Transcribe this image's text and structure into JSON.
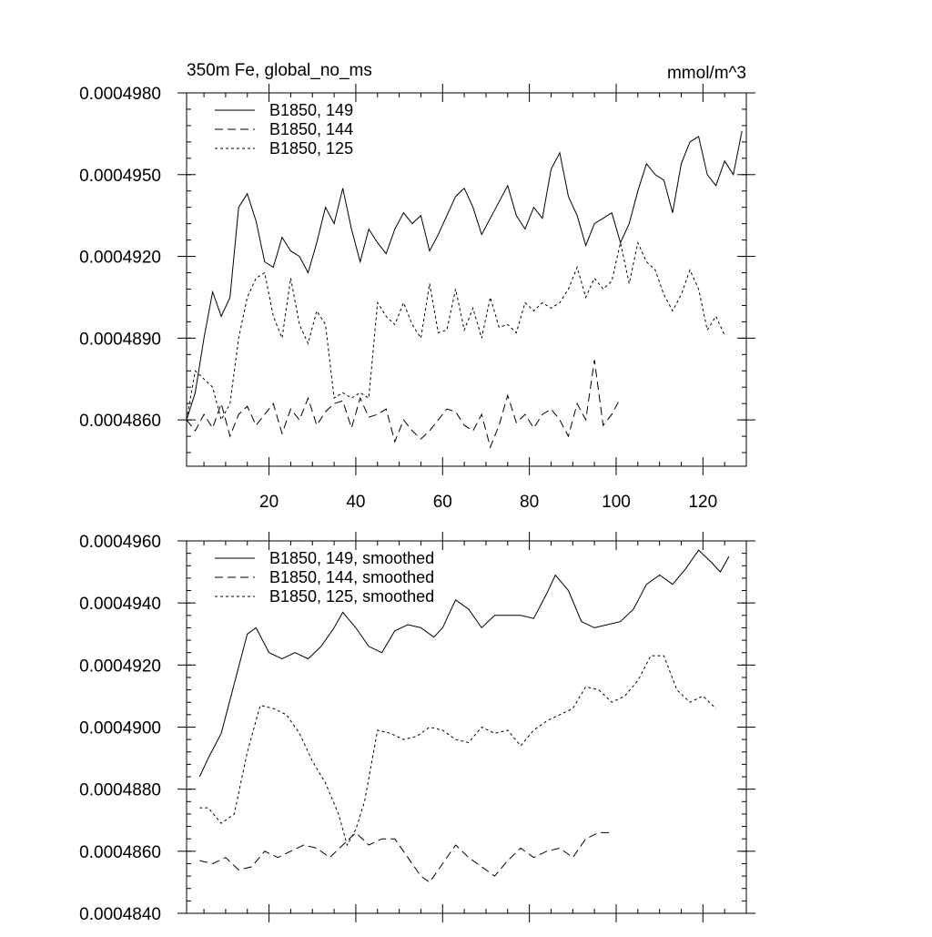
{
  "chart_data": [
    {
      "type": "line",
      "title": "350m Fe, global_no_ms",
      "units": "mmol/m^3",
      "xlim": [
        1,
        130
      ],
      "ylim": [
        0.0004843,
        0.000498
      ],
      "yticks": [
        0.000486,
        0.000489,
        0.000492,
        0.000495,
        0.000498
      ],
      "ytick_labels": [
        "0.0004860",
        "0.0004890",
        "0.0004920",
        "0.0004950",
        "0.0004980"
      ],
      "xticks": [
        20,
        40,
        60,
        80,
        100,
        120
      ],
      "xtick_labels": [
        "20",
        "40",
        "60",
        "80",
        "100",
        "120"
      ],
      "legend_position": "top-left",
      "series": [
        {
          "name": "B1850, 149",
          "dash": "solid",
          "x": [
            1,
            3,
            5,
            7,
            9,
            11,
            13,
            15,
            17,
            19,
            21,
            23,
            25,
            27,
            29,
            31,
            33,
            35,
            37,
            39,
            41,
            43,
            45,
            47,
            49,
            51,
            53,
            55,
            57,
            59,
            61,
            63,
            65,
            67,
            69,
            71,
            73,
            75,
            77,
            79,
            81,
            83,
            85,
            87,
            89,
            91,
            93,
            95,
            97,
            99,
            101,
            103,
            105,
            107,
            109,
            111,
            113,
            115,
            117,
            119,
            121,
            123,
            125,
            127,
            129
          ],
          "values": [
            0.000486,
            0.000487,
            0.000489,
            0.0004907,
            0.0004898,
            0.0004905,
            0.0004938,
            0.0004943,
            0.0004933,
            0.0004918,
            0.0004916,
            0.0004927,
            0.0004922,
            0.000492,
            0.0004914,
            0.0004925,
            0.0004938,
            0.0004932,
            0.0004945,
            0.000493,
            0.0004918,
            0.000493,
            0.0004925,
            0.0004921,
            0.000493,
            0.0004936,
            0.0004932,
            0.0004935,
            0.0004922,
            0.0004928,
            0.0004935,
            0.0004942,
            0.0004945,
            0.0004938,
            0.0004928,
            0.0004934,
            0.000494,
            0.0004946,
            0.0004935,
            0.000493,
            0.0004938,
            0.0004934,
            0.0004952,
            0.0004958,
            0.0004942,
            0.0004935,
            0.0004924,
            0.0004932,
            0.0004934,
            0.0004936,
            0.0004925,
            0.0004932,
            0.0004944,
            0.0004954,
            0.000495,
            0.0004948,
            0.0004936,
            0.0004954,
            0.0004962,
            0.0004964,
            0.000495,
            0.0004946,
            0.0004955,
            0.000495,
            0.0004966
          ]
        },
        {
          "name": "B1850, 144",
          "dash": "long",
          "x": [
            1,
            3,
            5,
            7,
            9,
            11,
            13,
            15,
            17,
            19,
            21,
            23,
            25,
            27,
            29,
            31,
            33,
            35,
            37,
            39,
            41,
            43,
            45,
            47,
            49,
            51,
            53,
            55,
            57,
            59,
            61,
            63,
            65,
            67,
            69,
            71,
            73,
            75,
            77,
            79,
            81,
            83,
            85,
            87,
            89,
            91,
            93,
            95,
            97,
            99,
            101
          ],
          "values": [
            0.000486,
            0.0004856,
            0.0004862,
            0.0004857,
            0.0004866,
            0.0004854,
            0.0004862,
            0.0004865,
            0.0004858,
            0.0004862,
            0.0004866,
            0.0004855,
            0.0004864,
            0.000486,
            0.0004868,
            0.0004858,
            0.0004863,
            0.0004866,
            0.0004867,
            0.0004857,
            0.0004868,
            0.0004861,
            0.0004862,
            0.0004864,
            0.0004852,
            0.000486,
            0.0004856,
            0.0004853,
            0.0004856,
            0.000486,
            0.0004864,
            0.0004863,
            0.0004858,
            0.0004856,
            0.0004862,
            0.000485,
            0.0004858,
            0.0004869,
            0.0004859,
            0.0004862,
            0.0004857,
            0.0004862,
            0.0004864,
            0.000486,
            0.0004854,
            0.0004866,
            0.000486,
            0.0004882,
            0.0004858,
            0.0004862,
            0.0004868
          ]
        },
        {
          "name": "B1850, 125",
          "dash": "short",
          "x": [
            1,
            3,
            5,
            7,
            9,
            11,
            13,
            15,
            17,
            19,
            21,
            23,
            25,
            27,
            29,
            31,
            33,
            35,
            37,
            39,
            41,
            43,
            45,
            47,
            49,
            51,
            53,
            55,
            57,
            59,
            61,
            63,
            65,
            67,
            69,
            71,
            73,
            75,
            77,
            79,
            81,
            83,
            85,
            87,
            89,
            91,
            93,
            95,
            97,
            99,
            101,
            103,
            105,
            107,
            109,
            111,
            113,
            115,
            117,
            119,
            121,
            123,
            125
          ],
          "values": [
            0.000486,
            0.0004878,
            0.0004875,
            0.0004872,
            0.000486,
            0.0004866,
            0.000489,
            0.0004905,
            0.0004912,
            0.0004914,
            0.0004898,
            0.000489,
            0.0004912,
            0.0004895,
            0.0004888,
            0.00049,
            0.0004895,
            0.0004868,
            0.000487,
            0.0004868,
            0.000487,
            0.0004868,
            0.0004903,
            0.0004898,
            0.0004895,
            0.0004903,
            0.0004895,
            0.000489,
            0.000491,
            0.0004892,
            0.0004893,
            0.0004908,
            0.0004893,
            0.0004901,
            0.000489,
            0.0004905,
            0.0004894,
            0.0004895,
            0.0004892,
            0.0004903,
            0.00049,
            0.0004903,
            0.0004901,
            0.0004903,
            0.0004908,
            0.0004916,
            0.0004905,
            0.0004912,
            0.0004908,
            0.0004911,
            0.0004925,
            0.000491,
            0.0004925,
            0.0004918,
            0.0004915,
            0.0004906,
            0.00049,
            0.0004906,
            0.0004915,
            0.0004908,
            0.0004893,
            0.0004898,
            0.0004891
          ]
        }
      ]
    },
    {
      "type": "line",
      "title": "",
      "units": "",
      "xlim": [
        1,
        130
      ],
      "ylim": [
        0.000484,
        0.000496
      ],
      "yticks": [
        0.000484,
        0.000486,
        0.000488,
        0.00049,
        0.000492,
        0.000494,
        0.000496
      ],
      "ytick_labels": [
        "0.0004840",
        "0.0004860",
        "0.0004880",
        "0.0004900",
        "0.0004920",
        "0.0004940",
        "0.0004960"
      ],
      "xticks": [
        20,
        40,
        60,
        80,
        100,
        120
      ],
      "xtick_labels": [],
      "legend_position": "top-left",
      "series": [
        {
          "name": "B1850, 149, smoothed",
          "dash": "solid",
          "x": [
            4,
            6,
            9,
            12,
            15,
            17,
            20,
            23,
            26,
            29,
            32,
            35,
            37,
            40,
            43,
            46,
            49,
            52,
            55,
            58,
            60,
            63,
            66,
            69,
            72,
            75,
            78,
            81,
            84,
            86,
            89,
            92,
            95,
            98,
            101,
            104,
            107,
            110,
            113,
            116,
            119,
            122,
            124,
            126
          ],
          "values": [
            0.0004884,
            0.000489,
            0.0004898,
            0.0004914,
            0.000493,
            0.0004932,
            0.0004924,
            0.0004922,
            0.0004924,
            0.0004922,
            0.0004926,
            0.0004932,
            0.0004937,
            0.0004932,
            0.0004926,
            0.0004924,
            0.0004931,
            0.0004933,
            0.0004932,
            0.0004929,
            0.0004932,
            0.0004941,
            0.0004938,
            0.0004932,
            0.0004936,
            0.0004936,
            0.0004936,
            0.0004935,
            0.0004943,
            0.0004949,
            0.0004944,
            0.0004934,
            0.0004932,
            0.0004933,
            0.0004934,
            0.0004938,
            0.0004946,
            0.0004949,
            0.0004946,
            0.0004951,
            0.0004957,
            0.0004953,
            0.000495,
            0.0004955
          ]
        },
        {
          "name": "B1850, 144, smoothed",
          "dash": "long",
          "x": [
            4,
            7,
            10,
            13,
            16,
            19,
            22,
            25,
            28,
            31,
            34,
            37,
            40,
            43,
            46,
            49,
            52,
            55,
            57,
            60,
            63,
            66,
            69,
            72,
            75,
            78,
            81,
            84,
            87,
            90,
            93,
            96,
            99
          ],
          "values": [
            0.0004857,
            0.0004856,
            0.0004858,
            0.0004854,
            0.0004855,
            0.000486,
            0.0004858,
            0.000486,
            0.0004862,
            0.0004861,
            0.0004858,
            0.0004862,
            0.0004866,
            0.0004862,
            0.0004864,
            0.0004864,
            0.0004858,
            0.0004852,
            0.000485,
            0.0004856,
            0.0004862,
            0.0004858,
            0.0004855,
            0.0004852,
            0.0004857,
            0.0004861,
            0.0004858,
            0.000486,
            0.0004861,
            0.0004858,
            0.0004864,
            0.0004866,
            0.0004866
          ]
        },
        {
          "name": "B1850, 125, smoothed",
          "dash": "short",
          "x": [
            4,
            6,
            9,
            12,
            15,
            18,
            21,
            24,
            27,
            30,
            33,
            36,
            38,
            40,
            42,
            45,
            48,
            51,
            54,
            57,
            60,
            63,
            66,
            69,
            72,
            75,
            78,
            81,
            84,
            87,
            90,
            93,
            96,
            99,
            102,
            105,
            108,
            111,
            114,
            117,
            120,
            123
          ],
          "values": [
            0.0004874,
            0.0004874,
            0.0004869,
            0.0004872,
            0.0004892,
            0.0004907,
            0.0004906,
            0.0004904,
            0.0004898,
            0.0004889,
            0.0004882,
            0.0004872,
            0.0004862,
            0.0004867,
            0.0004876,
            0.0004899,
            0.0004898,
            0.0004896,
            0.0004897,
            0.00049,
            0.0004899,
            0.0004896,
            0.0004895,
            0.00049,
            0.0004898,
            0.0004899,
            0.0004894,
            0.0004899,
            0.0004902,
            0.0004904,
            0.0004906,
            0.0004913,
            0.0004912,
            0.0004908,
            0.000491,
            0.0004915,
            0.0004923,
            0.0004923,
            0.0004912,
            0.0004908,
            0.000491,
            0.0004906
          ]
        }
      ]
    }
  ]
}
